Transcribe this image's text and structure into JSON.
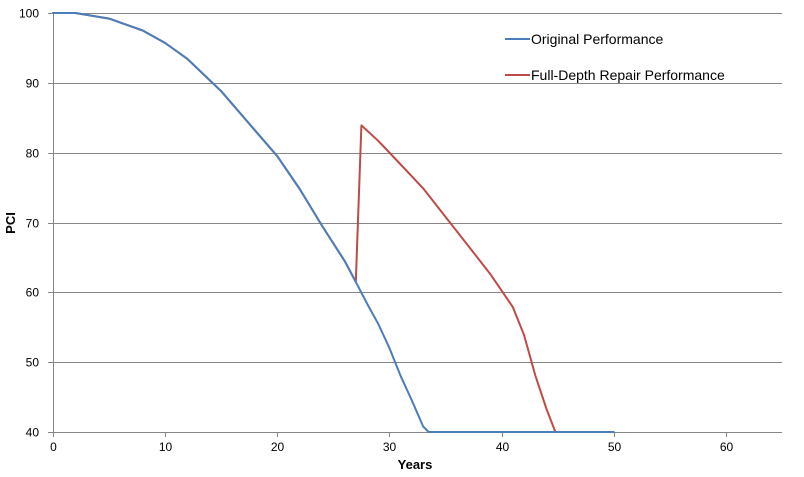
{
  "chart_data": {
    "type": "line",
    "title": "",
    "xlabel": "Years",
    "ylabel": "PCI",
    "xlim": [
      0,
      65
    ],
    "ylim": [
      40,
      100
    ],
    "xticks": [
      0,
      10,
      20,
      30,
      40,
      50,
      60
    ],
    "yticks": [
      40,
      50,
      60,
      70,
      80,
      90,
      100
    ],
    "grid": "horizontal",
    "legend_position": "top-right",
    "series": [
      {
        "name": "Original Performance",
        "color": "#4a7ebb",
        "x": [
          0,
          2,
          5,
          8,
          10,
          12,
          15,
          18,
          20,
          22,
          24,
          26,
          27,
          28,
          29,
          30,
          31,
          32,
          33,
          33.5,
          34,
          40,
          50
        ],
        "y": [
          100,
          100,
          99.2,
          97.5,
          95.7,
          93.4,
          88.8,
          83.2,
          79.5,
          74.8,
          69.5,
          64.5,
          61.5,
          58.4,
          55.5,
          52,
          48,
          44.5,
          40.8,
          40,
          40,
          40,
          40
        ]
      },
      {
        "name": "Full-Depth Repair Performance",
        "color": "#be4b48",
        "x": [
          0,
          2,
          5,
          8,
          10,
          12,
          15,
          18,
          20,
          22,
          24,
          26,
          27,
          27.5,
          29,
          31,
          33,
          35,
          37,
          39,
          41,
          42,
          43,
          44,
          44.8
        ],
        "y": [
          100,
          100,
          99.2,
          97.5,
          95.7,
          93.4,
          88.8,
          83.2,
          79.5,
          74.8,
          69.5,
          64.5,
          61.5,
          83.9,
          81.7,
          78.3,
          74.9,
          70.8,
          66.7,
          62.6,
          57.9,
          53.9,
          48.1,
          43.3,
          40
        ]
      }
    ]
  }
}
